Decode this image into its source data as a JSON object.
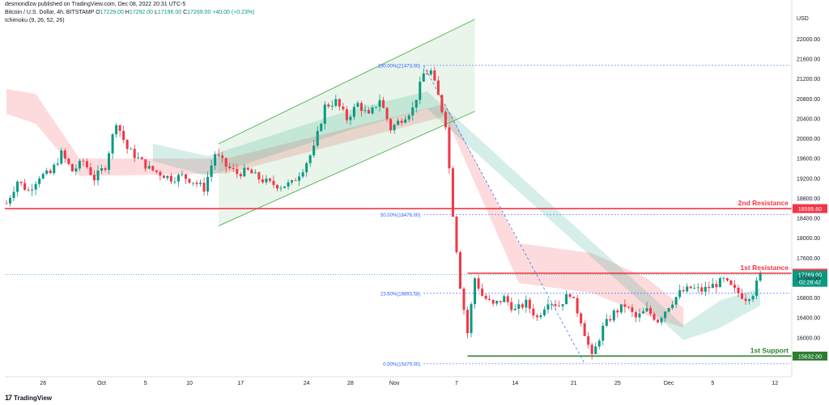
{
  "header": {
    "published": "desmondlzw published on TradingView.com, Dec 08, 2022 20:31 UTC-5",
    "symbol": "Bitcoin / U.S. Dollar, 4h, BITSTAMP",
    "o_label": "O",
    "o": "17229.00",
    "h_label": "H",
    "h": "17292.00",
    "l_label": "L",
    "l": "17196.00",
    "c_label": "C",
    "c": "17269.00",
    "change": "+40.00 (+0.23%)",
    "indicator": "Ichimoku (9, 26, 52, 26)"
  },
  "footer": {
    "brand": "TradingView",
    "logo": "17"
  },
  "chart_data": {
    "type": "candlestick",
    "y_axis_unit": "USD",
    "ylim": [
      15380,
      22300
    ],
    "y_ticks": [
      "22000.00",
      "21600.00",
      "21200.00",
      "20800.00",
      "20400.00",
      "20000.00",
      "19600.00",
      "19200.00",
      "18800.00",
      "18400.00",
      "18000.00",
      "17600.00",
      "17200.00",
      "16800.00",
      "16400.00",
      "16000.00"
    ],
    "x_ticks": [
      "26",
      "Oct",
      "5",
      "10",
      "17",
      "24",
      "28",
      "Nov",
      "7",
      "14",
      "21",
      "25",
      "Dec",
      "5",
      "12"
    ],
    "price_path": [
      [
        0,
        18700
      ],
      [
        3,
        19150
      ],
      [
        6,
        18950
      ],
      [
        9,
        19250
      ],
      [
        12,
        19300
      ],
      [
        15,
        19700
      ],
      [
        18,
        19350
      ],
      [
        21,
        19550
      ],
      [
        24,
        19200
      ],
      [
        27,
        19450
      ],
      [
        30,
        20350
      ],
      [
        33,
        19800
      ],
      [
        36,
        19600
      ],
      [
        39,
        19400
      ],
      [
        42,
        19300
      ],
      [
        45,
        19200
      ],
      [
        48,
        19250
      ],
      [
        51,
        19150
      ],
      [
        54,
        19000
      ],
      [
        57,
        19700
      ],
      [
        60,
        19450
      ],
      [
        63,
        19300
      ],
      [
        66,
        19350
      ],
      [
        69,
        19200
      ],
      [
        72,
        19100
      ],
      [
        75,
        19050
      ],
      [
        78,
        19100
      ],
      [
        81,
        19400
      ],
      [
        84,
        19800
      ],
      [
        87,
        20650
      ],
      [
        90,
        20750
      ],
      [
        93,
        20400
      ],
      [
        96,
        20700
      ],
      [
        99,
        20450
      ],
      [
        102,
        20800
      ],
      [
        105,
        20200
      ],
      [
        108,
        20400
      ],
      [
        111,
        20600
      ],
      [
        114,
        21300
      ],
      [
        116,
        21350
      ],
      [
        118,
        20850
      ],
      [
        120,
        20300
      ],
      [
        122,
        18500
      ],
      [
        124,
        17050
      ],
      [
        126,
        16100
      ],
      [
        128,
        17200
      ],
      [
        130,
        16850
      ],
      [
        133,
        16650
      ],
      [
        136,
        16800
      ],
      [
        139,
        16550
      ],
      [
        142,
        16700
      ],
      [
        145,
        16400
      ],
      [
        148,
        16750
      ],
      [
        151,
        16650
      ],
      [
        154,
        16900
      ],
      [
        157,
        16350
      ],
      [
        160,
        15600
      ],
      [
        163,
        16200
      ],
      [
        166,
        16500
      ],
      [
        169,
        16650
      ],
      [
        172,
        16400
      ],
      [
        175,
        16550
      ],
      [
        178,
        16350
      ],
      [
        181,
        16650
      ],
      [
        184,
        16900
      ],
      [
        187,
        17000
      ],
      [
        190,
        16950
      ],
      [
        193,
        17050
      ],
      [
        196,
        17150
      ],
      [
        199,
        16950
      ],
      [
        202,
        16800
      ],
      [
        204,
        16900
      ],
      [
        206,
        17269
      ]
    ],
    "kumo_red": [
      [
        0,
        21000,
        20500
      ],
      [
        8,
        20900,
        20300
      ],
      [
        20,
        19600,
        19250
      ],
      [
        60,
        19600,
        19300
      ],
      [
        120,
        20700,
        20450
      ],
      [
        140,
        17900,
        17100
      ],
      [
        160,
        17700,
        16900
      ],
      [
        175,
        17200,
        16450
      ],
      [
        185,
        16600,
        16200
      ]
    ],
    "kumo_green": [
      [
        40,
        19900,
        19550
      ],
      [
        55,
        19650,
        19250
      ],
      [
        95,
        20600,
        20200
      ],
      [
        115,
        20950,
        20600
      ],
      [
        185,
        16250,
        15950
      ],
      [
        195,
        16750,
        16200
      ],
      [
        206,
        17000,
        16650
      ]
    ],
    "channel_upper": [
      [
        58,
        19900
      ],
      [
        128,
        22400
      ]
    ],
    "channel_lower": [
      [
        58,
        18250
      ],
      [
        128,
        20550
      ]
    ],
    "fibonacci": [
      {
        "label": "100.00%(21473.00)",
        "value": 21473
      },
      {
        "label": "50.00%(18476.00)",
        "value": 18476
      },
      {
        "label": "23.60%(16893.58)",
        "value": 16893.58
      },
      {
        "label": "0.00%(15479.00)",
        "value": 15479
      }
    ],
    "levels": [
      {
        "name": "2nd Resistance",
        "price_label": "18595.60",
        "value": 18595.6,
        "color": "#f23645"
      },
      {
        "name": "1st Resistance",
        "price_label": "17297.00",
        "value": 17297,
        "color": "#f23645"
      },
      {
        "name": "1st Support",
        "price_label": "15632.00",
        "value": 15632,
        "color": "#2e7d32"
      }
    ],
    "last_price": {
      "label": "17269.00",
      "countdown": "02:28:42",
      "value": 17269,
      "color": "#089981"
    }
  }
}
